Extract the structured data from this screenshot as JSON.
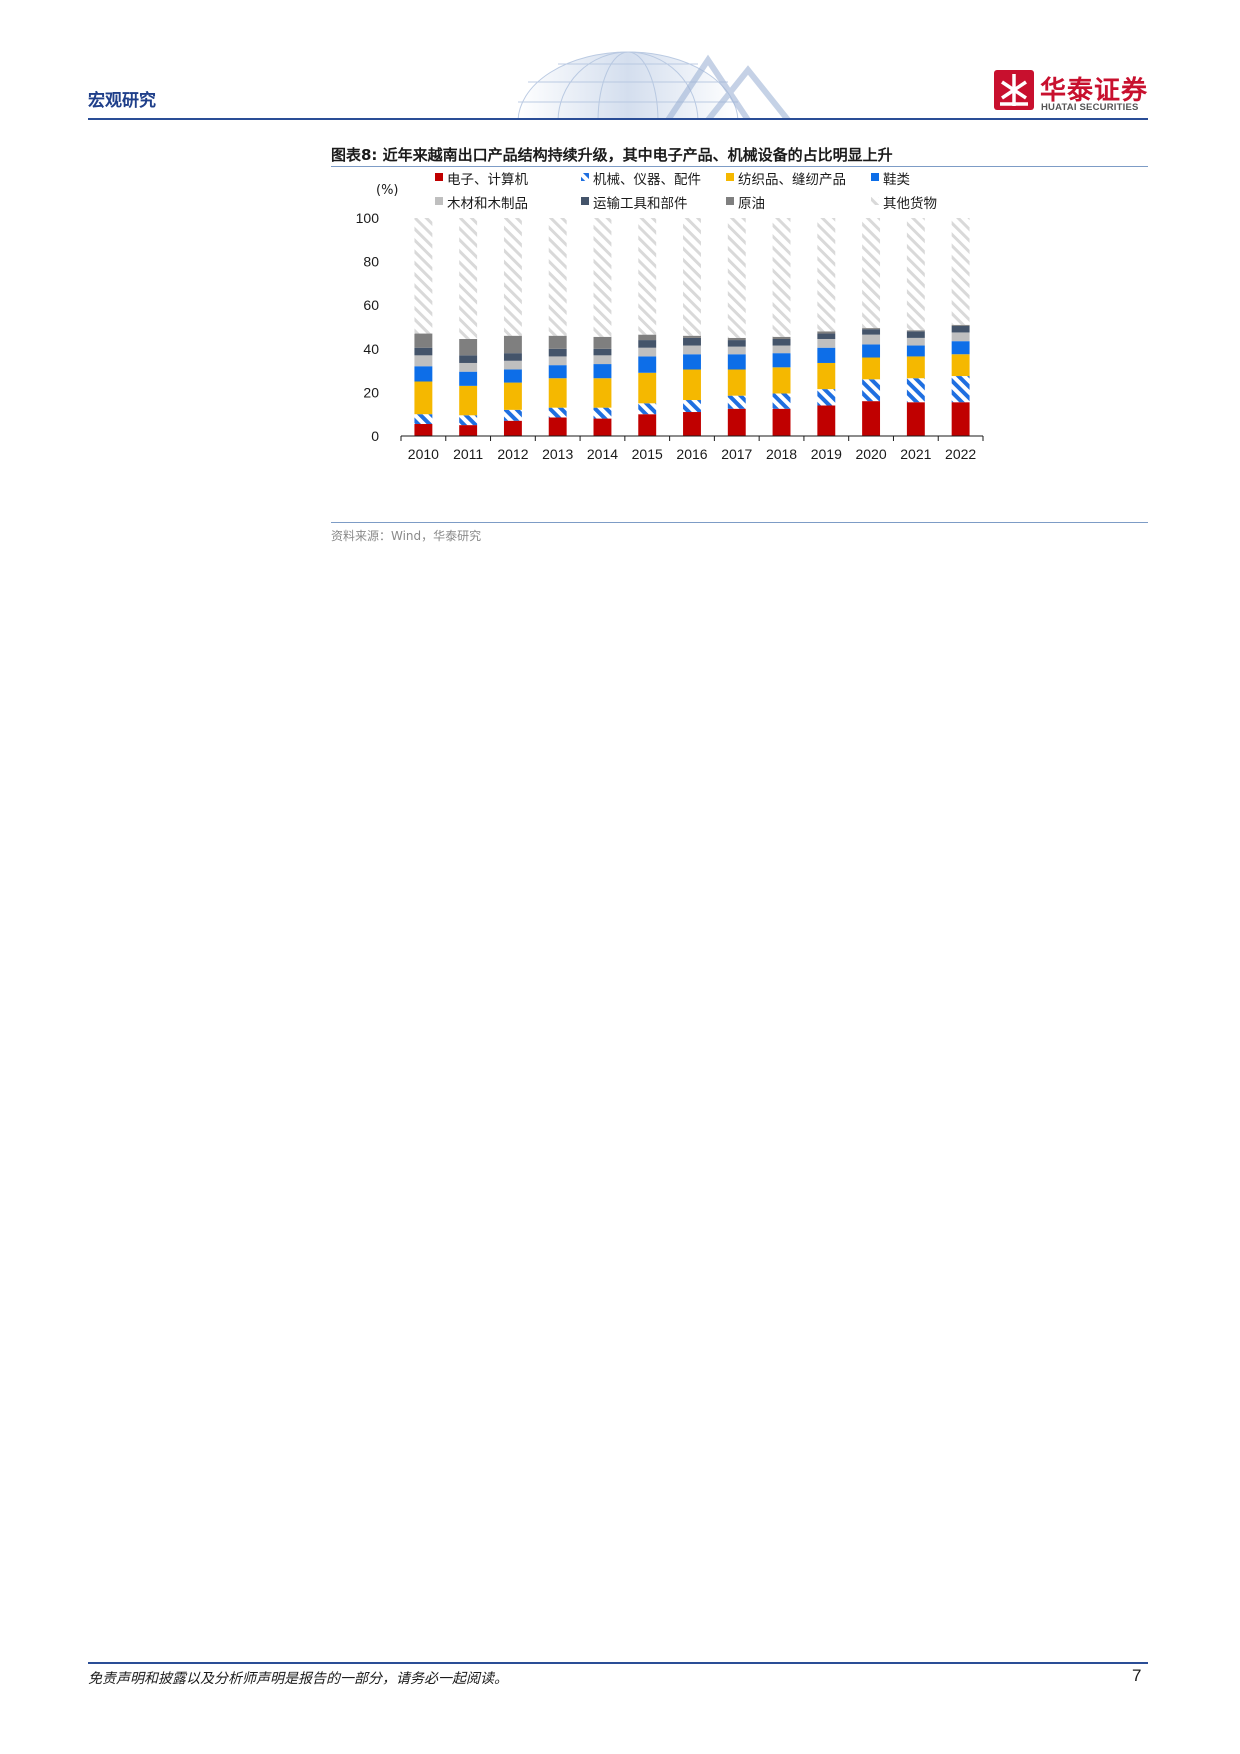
{
  "header": {
    "section": "宏观研究",
    "logo_cn": "华泰证券",
    "logo_en": "HUATAI SECURITIES"
  },
  "figure": {
    "title": "图表8:  近年来越南出口产品结构持续升级，其中电子产品、机械设备的占比明显上升",
    "source": "资料来源：Wind，华泰研究"
  },
  "chart_data": {
    "type": "bar",
    "stacked": true,
    "unit_label": "(%)",
    "ylim": [
      0,
      100
    ],
    "yticks": [
      0,
      20,
      40,
      60,
      80,
      100
    ],
    "categories": [
      "2010",
      "2011",
      "2012",
      "2013",
      "2014",
      "2015",
      "2016",
      "2017",
      "2018",
      "2019",
      "2020",
      "2021",
      "2022"
    ],
    "legend_position": "top",
    "series": [
      {
        "name": "电子、计算机",
        "color": "#c00000",
        "pattern": "solid",
        "values": [
          5.5,
          5,
          7,
          8.5,
          8,
          10,
          11,
          12.5,
          12.5,
          14,
          16,
          15.5,
          15.5
        ]
      },
      {
        "name": "机械、仪器、配件",
        "color": "#1f6fe0",
        "pattern": "hatch",
        "values": [
          4.5,
          4.5,
          5,
          4.5,
          5,
          5,
          5.5,
          6,
          7,
          7.5,
          10,
          11,
          12
        ]
      },
      {
        "name": "纺织品、缝纫产品",
        "color": "#f5b800",
        "pattern": "solid",
        "values": [
          15,
          13.5,
          12.5,
          13.5,
          13.5,
          14,
          14,
          12,
          12,
          12,
          10,
          10,
          10
        ]
      },
      {
        "name": "鞋类",
        "color": "#0d6ee8",
        "pattern": "solid",
        "values": [
          7,
          6.5,
          6,
          6,
          6.5,
          7.5,
          7,
          7,
          6.5,
          7,
          6,
          5,
          6
        ]
      },
      {
        "name": "木材和木制品",
        "color": "#bfbfbf",
        "pattern": "solid",
        "values": [
          5,
          4,
          4,
          4,
          4,
          4,
          4,
          3.5,
          3.5,
          4,
          4.5,
          3.5,
          4
        ]
      },
      {
        "name": "运输工具和部件",
        "color": "#44546a",
        "pattern": "solid",
        "values": [
          3.5,
          3.5,
          3.5,
          3.5,
          3,
          3.5,
          3.5,
          3,
          3,
          2.5,
          2.5,
          3,
          3
        ]
      },
      {
        "name": "原油",
        "color": "#7f7f7f",
        "pattern": "solid",
        "values": [
          6.5,
          7.5,
          8,
          6,
          5.5,
          2.5,
          1,
          1,
          1,
          1,
          0.5,
          0.5,
          0.5
        ]
      },
      {
        "name": "其他货物",
        "color": "#d9d9d9",
        "pattern": "hatch-light",
        "values": [
          53,
          55.5,
          54,
          54,
          54.5,
          53.5,
          54,
          55,
          54.5,
          52,
          50.5,
          51.5,
          49
        ]
      }
    ]
  },
  "footer": {
    "disclaimer": "免责声明和披露以及分析师声明是报告的一部分，请务必一起阅读。",
    "page": "7"
  }
}
